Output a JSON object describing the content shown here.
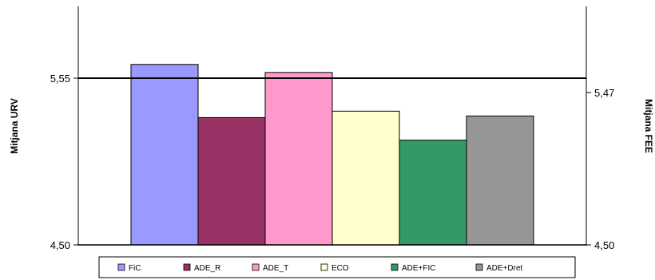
{
  "chart_data": {
    "type": "bar",
    "categories": [
      "FiC",
      "ADE_R",
      "ADE_T",
      "ECO",
      "ADE+FIC",
      "ADE+Dret"
    ],
    "values": [
      5.62,
      5.29,
      5.57,
      5.33,
      5.15,
      5.3
    ],
    "colors": [
      "#9999ff",
      "#993366",
      "#ff99cc",
      "#ffffcc",
      "#339966",
      "#969696"
    ],
    "ylabel": "Mitjana URV",
    "y2label": "Mitjana FEE",
    "ylim": [
      4.5,
      6.0
    ],
    "y_ticks": [
      "4,50",
      "5,55"
    ],
    "y2_ticks": [
      "4,50",
      "5,47"
    ],
    "legend": {
      "placement": "bottom"
    },
    "grid": false
  }
}
